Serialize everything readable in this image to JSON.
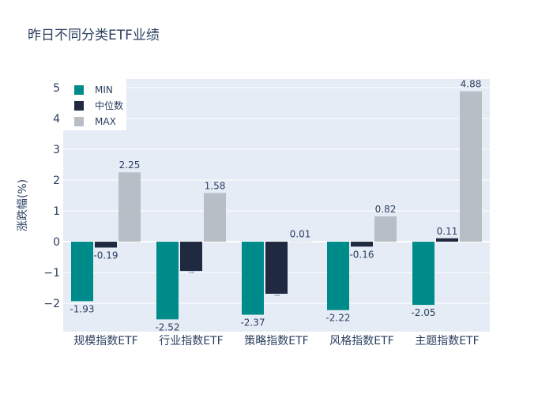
{
  "chart_data": {
    "type": "bar",
    "title": "昨日不同分类ETF业绩",
    "xlabel": "",
    "ylabel": "涨跌幅(%)",
    "ylim": [
      -2.92,
      5.28
    ],
    "yticks": [
      -2,
      -1,
      0,
      1,
      2,
      3,
      4,
      5
    ],
    "ytick_labels": [
      "−2",
      "−1",
      "0",
      "1",
      "2",
      "3",
      "4",
      "5"
    ],
    "categories": [
      "规模指数ETF",
      "行业指数ETF",
      "策略指数ETF",
      "风格指数ETF",
      "主题指数ETF"
    ],
    "series": [
      {
        "name": "MIN",
        "color": "#008b8b",
        "values": [
          -1.93,
          -2.52,
          -2.37,
          -2.22,
          -2.05
        ],
        "labels": [
          "-1.93",
          "-2.52",
          "-2.37",
          "-2.22",
          "-2.05"
        ]
      },
      {
        "name": "中位数",
        "color": "#1f2a40",
        "values": [
          -0.19,
          -0.95,
          -1.69,
          -0.16,
          0.11
        ],
        "labels": [
          "-0.19",
          "-0.95",
          "-1.69",
          "-0.16",
          "0.11"
        ]
      },
      {
        "name": "MAX",
        "color": "#b8bec6",
        "values": [
          2.25,
          1.58,
          0.01,
          0.82,
          4.88
        ],
        "labels": [
          "2.25",
          "1.58",
          "0.01",
          "0.82",
          "4.88"
        ]
      }
    ],
    "legend": "top-left",
    "grid": true
  }
}
